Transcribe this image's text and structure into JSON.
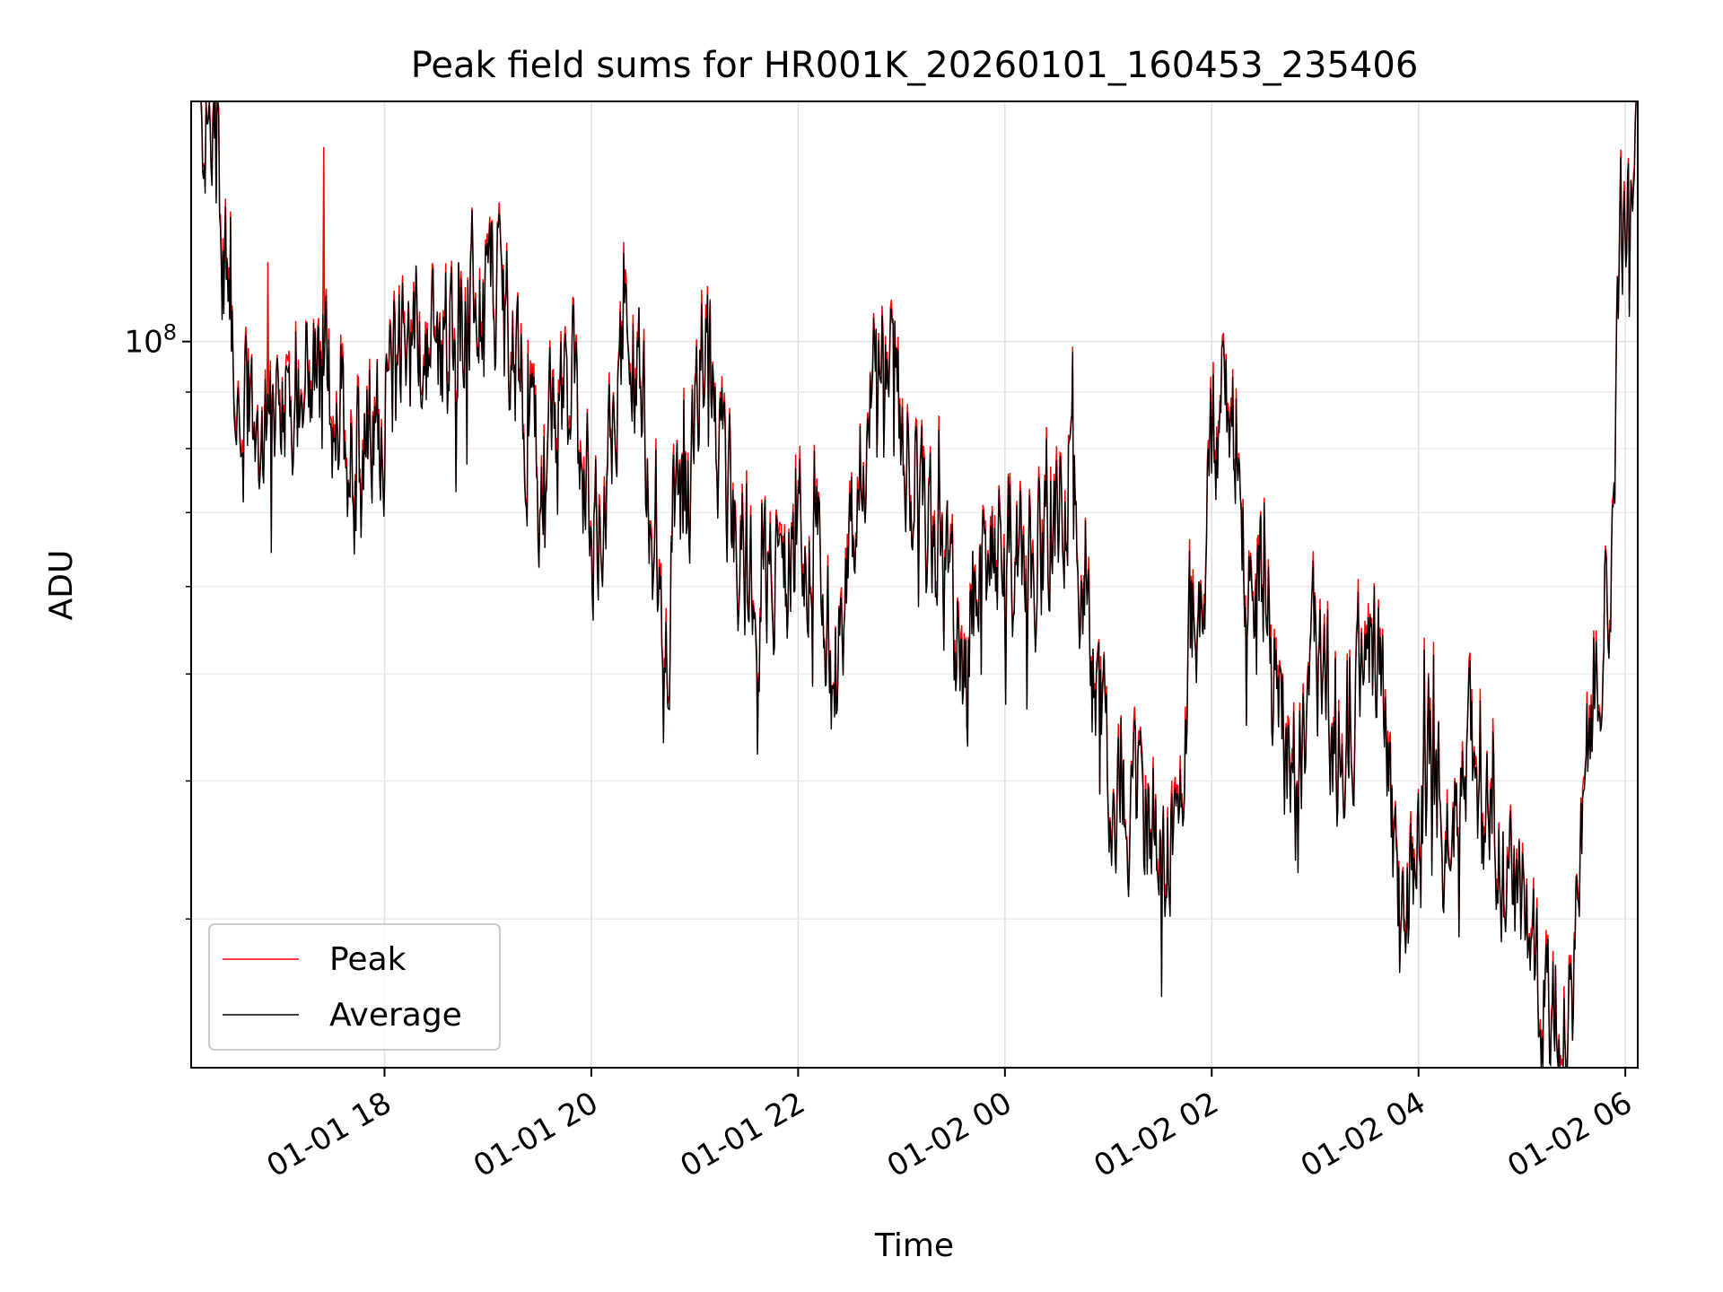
{
  "chart_data": {
    "type": "line",
    "title": "Peak field sums for HR001K_20260101_160453_235406",
    "xlabel": "Time",
    "ylabel": "ADU",
    "yscale": "log",
    "ylim": [
      22000000,
      165000000
    ],
    "y_major_tick_label": {
      "base": "10",
      "exponent": "8",
      "value": 100000000
    },
    "y_minor_ticks": [
      30000000,
      40000000,
      50000000,
      60000000,
      70000000,
      80000000,
      90000000,
      200000000
    ],
    "xlim_hours": [
      16.13,
      30.12
    ],
    "x_ticks": [
      {
        "hour": 18,
        "label": "01-01 18"
      },
      {
        "hour": 20,
        "label": "01-01 20"
      },
      {
        "hour": 22,
        "label": "01-01 22"
      },
      {
        "hour": 24,
        "label": "01-02 00"
      },
      {
        "hour": 26,
        "label": "01-02 02"
      },
      {
        "hour": 28,
        "label": "01-02 04"
      },
      {
        "hour": 30,
        "label": "01-02 06"
      }
    ],
    "grid": true,
    "legend_position": "lower-left",
    "series": [
      {
        "name": "Peak",
        "color": "#ff0000"
      },
      {
        "name": "Average",
        "color": "#000000"
      }
    ],
    "average_keypoints": {
      "hours": [
        16.2,
        16.35,
        16.45,
        16.5,
        16.55,
        16.6,
        16.75,
        17.0,
        17.25,
        17.5,
        17.7,
        17.9,
        18.2,
        18.5,
        18.8,
        19.1,
        19.3,
        19.5,
        19.8,
        20.0,
        20.2,
        20.35,
        20.5,
        20.7,
        20.8,
        20.95,
        21.1,
        21.2,
        21.4,
        21.6,
        21.8,
        22.0,
        22.2,
        22.35,
        22.5,
        22.7,
        22.85,
        23.0,
        23.25,
        23.4,
        23.6,
        23.8,
        24.0,
        24.2,
        24.4,
        24.6,
        24.8,
        25.0,
        25.2,
        25.4,
        25.6,
        25.8,
        25.95,
        26.1,
        26.3,
        26.5,
        26.7,
        26.8,
        27.0,
        27.2,
        27.4,
        27.6,
        27.8,
        27.95,
        28.1,
        28.25,
        28.4,
        28.6,
        28.8,
        29.0,
        29.15,
        29.3,
        29.45,
        29.55,
        29.7,
        29.85,
        29.95,
        30.05,
        30.12
      ],
      "values": [
        163000000,
        150000000,
        120000000,
        108000000,
        98000000,
        85000000,
        82000000,
        93000000,
        96000000,
        88000000,
        80000000,
        82000000,
        100000000,
        98000000,
        110000000,
        112000000,
        98000000,
        73000000,
        95000000,
        64000000,
        88000000,
        103000000,
        85000000,
        48000000,
        70000000,
        69000000,
        104000000,
        82000000,
        67000000,
        58000000,
        63000000,
        66000000,
        61000000,
        55000000,
        61000000,
        85000000,
        100000000,
        80000000,
        67000000,
        61000000,
        52000000,
        61000000,
        67000000,
        63000000,
        66000000,
        71000000,
        59000000,
        41000000,
        39000000,
        37000000,
        36000000,
        53000000,
        68000000,
        96000000,
        66000000,
        62000000,
        44000000,
        38000000,
        50000000,
        43000000,
        49000000,
        55000000,
        30000000,
        32000000,
        44000000,
        36000000,
        43000000,
        37000000,
        33000000,
        31000000,
        25000000,
        24000000,
        24500000,
        31000000,
        51000000,
        61000000,
        120000000,
        140000000,
        160000000
      ]
    },
    "peak_spikes": [
      {
        "hour": 16.87,
        "value": 118000000
      },
      {
        "hour": 17.41,
        "value": 150000000
      }
    ]
  }
}
